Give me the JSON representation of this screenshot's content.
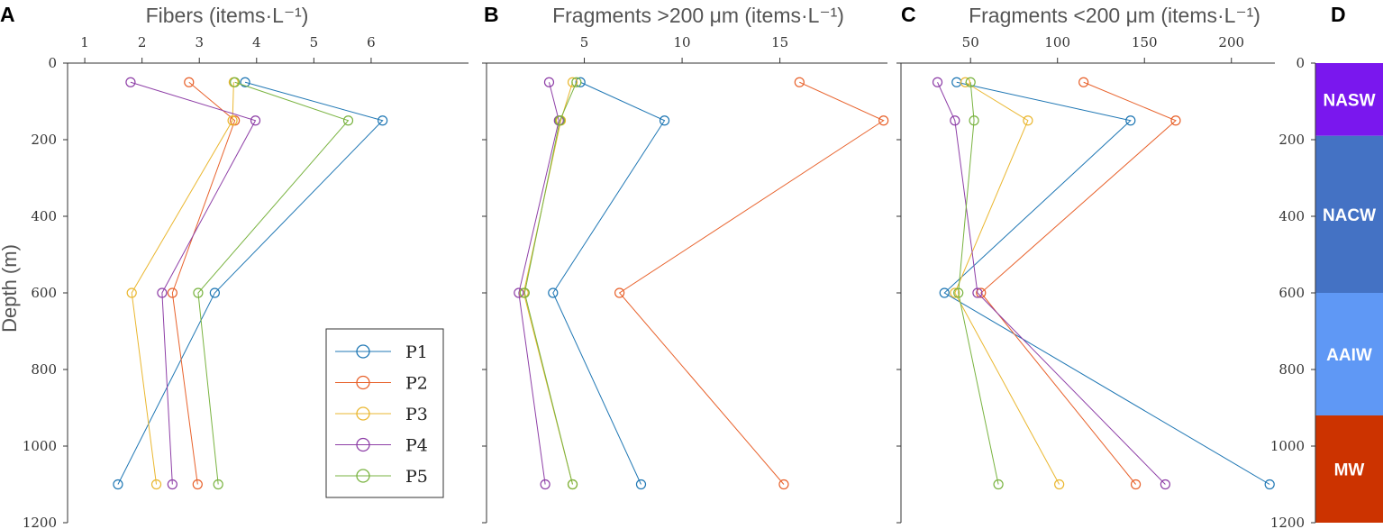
{
  "chart_data": [
    {
      "panel": "A",
      "type": "line",
      "title": "Fibers (items·L⁻¹)",
      "ylabel": "Depth (m)",
      "xlim": [
        0.7,
        7.7
      ],
      "x_ticks": [
        1,
        2,
        3,
        4,
        5,
        6
      ],
      "ylim": [
        0,
        1200
      ],
      "y_ticks": [
        0,
        200,
        400,
        600,
        800,
        1000,
        1200
      ],
      "y_inverted": true,
      "depths": [
        50,
        150,
        600,
        1100
      ],
      "series": [
        {
          "name": "P1",
          "color": "#1f77b4",
          "values": [
            3.8,
            6.2,
            3.27,
            1.58
          ]
        },
        {
          "name": "P2",
          "color": "#e8622c",
          "values": [
            2.82,
            3.62,
            2.53,
            2.97
          ]
        },
        {
          "name": "P3",
          "color": "#eab730",
          "values": [
            3.6,
            3.58,
            1.82,
            2.25
          ]
        },
        {
          "name": "P4",
          "color": "#8e3fa7",
          "values": [
            1.8,
            3.98,
            2.35,
            2.53
          ]
        },
        {
          "name": "P5",
          "color": "#79b340",
          "values": [
            3.62,
            5.6,
            2.98,
            3.33
          ]
        }
      ],
      "legend": {
        "placement": "bottom-right",
        "entries": [
          "P1",
          "P2",
          "P3",
          "P4",
          "P5"
        ]
      }
    },
    {
      "panel": "B",
      "type": "line",
      "title": "Fragments >200 μm (items·L⁻¹)",
      "xlim": [
        0,
        20.5
      ],
      "x_ticks": [
        5,
        10,
        15
      ],
      "ylim": [
        0,
        1200
      ],
      "y_inverted": true,
      "depths": [
        50,
        150,
        600,
        1100
      ],
      "series": [
        {
          "name": "P1",
          "color": "#1f77b4",
          "values": [
            4.8,
            9.1,
            3.4,
            7.9
          ]
        },
        {
          "name": "P2",
          "color": "#e8622c",
          "values": [
            16.0,
            20.3,
            6.8,
            15.2
          ]
        },
        {
          "name": "P3",
          "color": "#eab730",
          "values": [
            4.4,
            3.8,
            1.9,
            4.4
          ]
        },
        {
          "name": "P4",
          "color": "#8e3fa7",
          "values": [
            3.2,
            3.7,
            1.65,
            3.0
          ]
        },
        {
          "name": "P5",
          "color": "#79b340",
          "values": [
            4.6,
            3.75,
            1.95,
            4.4
          ]
        }
      ]
    },
    {
      "panel": "C",
      "type": "line",
      "title": "Fragments <200 μm (items·L⁻¹)",
      "xlim": [
        10,
        225
      ],
      "x_ticks": [
        50,
        100,
        150,
        200
      ],
      "ylim": [
        0,
        1200
      ],
      "y_inverted": true,
      "depths": [
        50,
        150,
        600,
        1100
      ],
      "series": [
        {
          "name": "P1",
          "color": "#1f77b4",
          "values": [
            42,
            142,
            35,
            222
          ]
        },
        {
          "name": "P2",
          "color": "#e8622c",
          "values": [
            115,
            168,
            56,
            145
          ]
        },
        {
          "name": "P3",
          "color": "#eab730",
          "values": [
            47,
            83,
            41,
            101
          ]
        },
        {
          "name": "P4",
          "color": "#8e3fa7",
          "values": [
            31,
            41,
            54,
            162
          ]
        },
        {
          "name": "P5",
          "color": "#79b340",
          "values": [
            50,
            52,
            43,
            66
          ]
        }
      ]
    },
    {
      "panel": "D",
      "type": "bar",
      "ylim": [
        0,
        1200
      ],
      "y_ticks": [
        0,
        200,
        400,
        600,
        800,
        1000,
        1200
      ],
      "y_inverted": true,
      "layers": [
        {
          "name": "NASW",
          "top": 0,
          "bottom": 190,
          "color": "#7a17ee"
        },
        {
          "name": "NACW",
          "top": 190,
          "bottom": 600,
          "color": "#4472c4"
        },
        {
          "name": "AAIW",
          "top": 600,
          "bottom": 920,
          "color": "#5f98f5"
        },
        {
          "name": "MW",
          "top": 920,
          "bottom": 1200,
          "color": "#cc3300"
        }
      ]
    }
  ]
}
